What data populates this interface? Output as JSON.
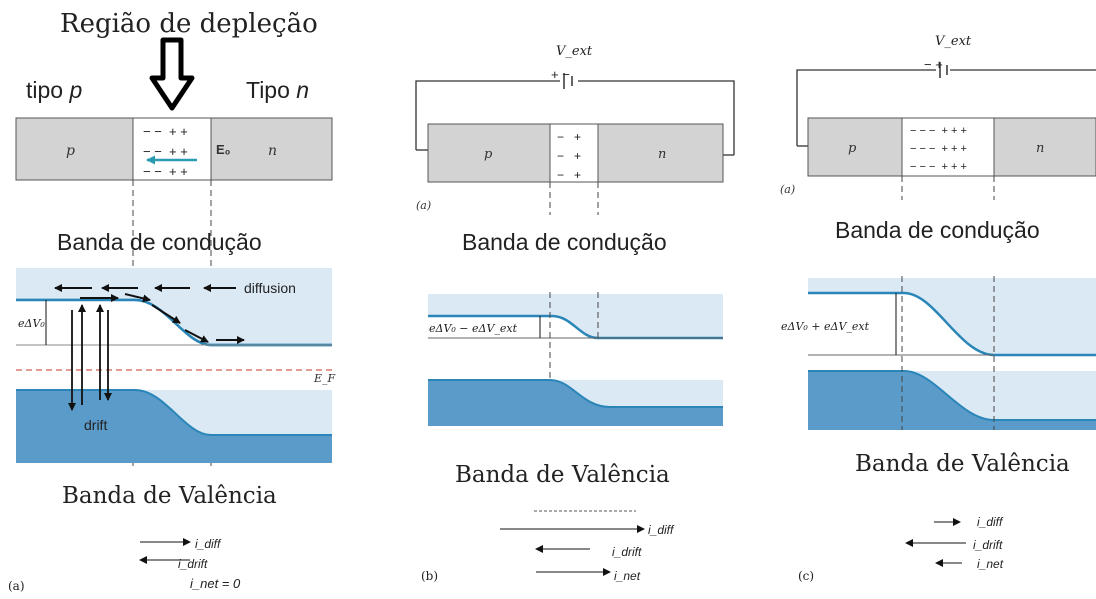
{
  "colors": {
    "conduction_band": "#dbe9f5",
    "valence_band": "#5b9bc9",
    "band_edge": "#2a86b8",
    "semiconductor": "#d3d3d3",
    "field_arrow": "#2a9bb0"
  },
  "panel_a": {
    "title": "Região de depleção",
    "p_side_label": "tipo",
    "p_side_italic": "p",
    "n_side_label": "Tipo",
    "n_side_italic": "n",
    "p_label": "p",
    "n_label": "n",
    "field_label": "E₀",
    "charges_row1": "− −  + +",
    "charges_row2": "− −  + +",
    "charges_row3": "− −  + +",
    "conduction_label": "Banda de condução",
    "valence_label": "Banda de Valência",
    "diffusion_label": "diffusion",
    "drift_label": "drift",
    "barrier_label": "eΔV₀",
    "fermi_label": "E_F",
    "current_diff": "i_diff",
    "current_drift": "i_drift",
    "current_net": "i_net = 0",
    "caption": "(a)"
  },
  "panel_b": {
    "battery_label": "V_ext",
    "battery_polarity": "+ −",
    "p_label": "p",
    "n_label": "n",
    "charges_row1": "−   +",
    "charges_row2": "−   +",
    "charges_row3": "−   +",
    "sub_caption": "(a)",
    "conduction_label": "Banda de condução",
    "valence_label": "Banda de Valência",
    "barrier_label": "eΔV₀ − eΔV_ext",
    "current_diff": "i_diff",
    "current_drift": "i_drift",
    "current_net": "i_net",
    "caption": "(b)"
  },
  "panel_c": {
    "battery_label": "V_ext",
    "battery_polarity": "− +",
    "p_label": "p",
    "n_label": "n",
    "charges_row1": "− − −  + + +",
    "charges_row2": "− − −  + + +",
    "charges_row3": "− − −  + + +",
    "sub_caption": "(a)",
    "conduction_label": "Banda de condução",
    "valence_label": "Banda de Valência",
    "barrier_label": "eΔV₀ + eΔV_ext",
    "current_diff": "i_diff",
    "current_drift": "i_drift",
    "current_net": "i_net",
    "caption": "(c)"
  }
}
